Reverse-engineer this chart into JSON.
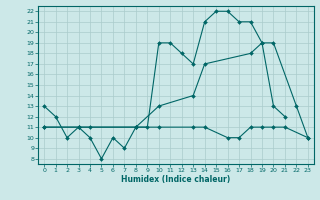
{
  "xlabel": "Humidex (Indice chaleur)",
  "bg_color": "#cce8e8",
  "grid_color": "#aacccc",
  "line_color": "#006666",
  "xlim": [
    -0.5,
    23.5
  ],
  "ylim": [
    7.5,
    22.5
  ],
  "xticks": [
    0,
    1,
    2,
    3,
    4,
    5,
    6,
    7,
    8,
    9,
    10,
    11,
    12,
    13,
    14,
    15,
    16,
    17,
    18,
    19,
    20,
    21,
    22,
    23
  ],
  "yticks": [
    8,
    9,
    10,
    11,
    12,
    13,
    14,
    15,
    16,
    17,
    18,
    19,
    20,
    21,
    22
  ],
  "line1_x": [
    0,
    1,
    2,
    3,
    4,
    5,
    6,
    7,
    8,
    9,
    10,
    11,
    12,
    13,
    14,
    15,
    16,
    17,
    18,
    19,
    20,
    21
  ],
  "line1_y": [
    13,
    12,
    10,
    11,
    10,
    8,
    10,
    9,
    11,
    11,
    19,
    19,
    18,
    17,
    21,
    22,
    22,
    21,
    21,
    19,
    13,
    12
  ],
  "line2_x": [
    0,
    3,
    8,
    10,
    13,
    14,
    18,
    19,
    20,
    22,
    23
  ],
  "line2_y": [
    11,
    11,
    11,
    13,
    14,
    17,
    18,
    19,
    19,
    13,
    10
  ],
  "line3_x": [
    0,
    3,
    4,
    8,
    10,
    13,
    14,
    16,
    17,
    18,
    19,
    20,
    21,
    23
  ],
  "line3_y": [
    11,
    11,
    11,
    11,
    11,
    11,
    11,
    10,
    10,
    11,
    11,
    11,
    11,
    10
  ]
}
